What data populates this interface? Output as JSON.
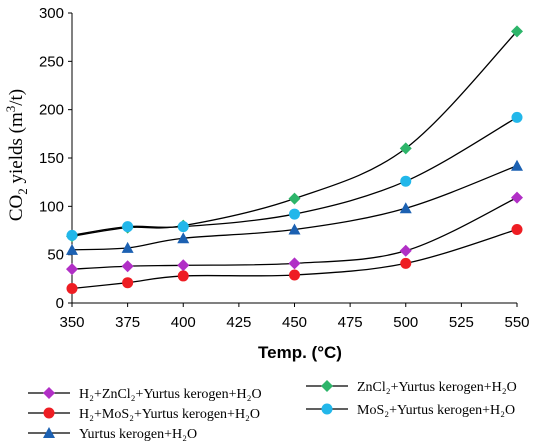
{
  "chart_data": {
    "type": "line",
    "title": "",
    "xlabel": "Temp. (°C)",
    "ylabel": {
      "prefix": "CO",
      "sub": "2",
      "mid": " yields (m",
      "sup": "3",
      "suffix": "/t)"
    },
    "x": [
      350,
      375,
      400,
      450,
      500,
      550
    ],
    "x_ticks": [
      "350",
      "375",
      "400",
      "425",
      "450",
      "475",
      "500",
      "525",
      "550"
    ],
    "xlim": [
      350,
      550
    ],
    "ylim": [
      0,
      300
    ],
    "y_ticks": [
      "0",
      "50",
      "100",
      "150",
      "200",
      "250",
      "300"
    ],
    "grid": false,
    "legend_position": "bottom",
    "series": [
      {
        "name": "H₂+ZnCl₂+Yurtus kerogen+H₂O",
        "marker": "diamond",
        "color": "#b12fc6",
        "values": [
          35,
          38,
          39,
          41,
          54,
          109
        ]
      },
      {
        "name": "H₂+MoS₂+Yurtus kerogen+H₂O",
        "marker": "circle",
        "color": "#ee1d23",
        "values": [
          15,
          21,
          28,
          29,
          41,
          76
        ]
      },
      {
        "name": "Yurtus kerogen+H₂O",
        "marker": "triangle",
        "color": "#1c61b2",
        "values": [
          55,
          57,
          67,
          76,
          98,
          142
        ]
      },
      {
        "name": "ZnCl₂+Yurtus kerogen+H₂O",
        "marker": "diamond",
        "color": "#2db56a",
        "values": [
          69,
          78,
          80,
          108,
          160,
          281
        ]
      },
      {
        "name": "MoS₂+Yurtus kerogen+H₂O",
        "marker": "circle",
        "color": "#22b7ea",
        "values": [
          70,
          79,
          79,
          92,
          126,
          192
        ]
      }
    ]
  }
}
